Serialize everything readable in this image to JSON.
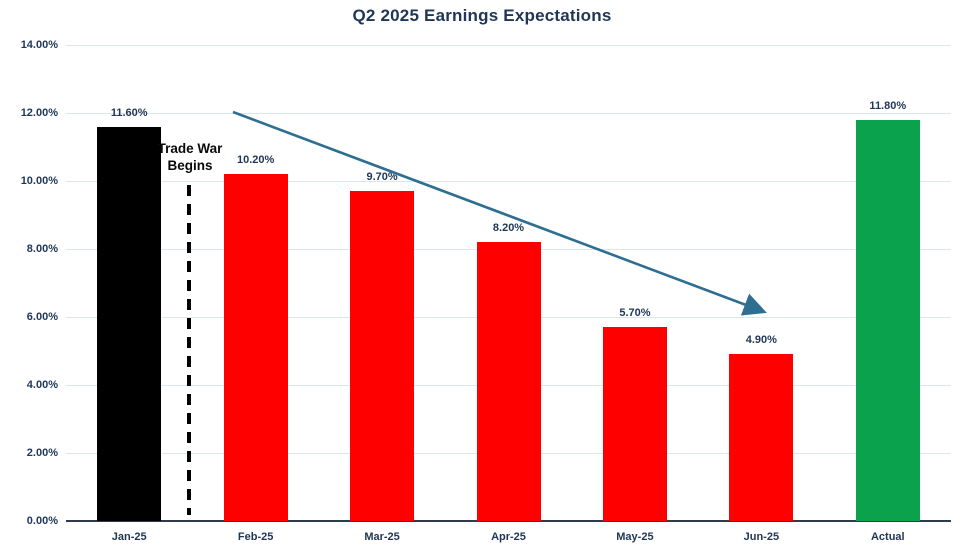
{
  "title": "Q2 2025 Earnings Expectations",
  "chart_data": {
    "type": "bar",
    "title": "Q2 2025 Earnings Expectations",
    "categories": [
      "Jan-25",
      "Feb-25",
      "Mar-25",
      "Apr-25",
      "May-25",
      "Jun-25",
      "Actual"
    ],
    "values": [
      11.6,
      10.2,
      9.7,
      8.2,
      5.7,
      4.9,
      11.8
    ],
    "value_labels": [
      "11.60%",
      "10.20%",
      "9.70%",
      "8.20%",
      "5.70%",
      "4.90%",
      "11.80%"
    ],
    "bar_color_keys": [
      "black",
      "red",
      "red",
      "red",
      "red",
      "red",
      "green"
    ],
    "xlabel": "",
    "ylabel": "",
    "ylim": [
      0,
      14
    ],
    "ytick_values": [
      14,
      12,
      10,
      8,
      6,
      4,
      2,
      0
    ],
    "ytick_labels": [
      "14.00%",
      "12.00%",
      "10.00%",
      "8.00%",
      "6.00%",
      "4.00%",
      "2.00%",
      "0.00%"
    ],
    "grid": true,
    "legend": false,
    "annotations": [
      {
        "id": "trade-war",
        "text_line1": "Trade War",
        "text_line2": "Begins",
        "style": "dashed-vertical-line",
        "position": "between Jan-25 and Feb-25"
      },
      {
        "id": "trend-arrow",
        "style": "downward-sloping-arrow",
        "spans": "Feb-25 to Jun-25"
      }
    ]
  },
  "colors": {
    "navy_text": "#1F3655",
    "red_bar": "#FF0000",
    "black_bar": "#000000",
    "green_bar": "#0BA24E",
    "trend_arrow": "#2E6E91",
    "gridline": "#DCE6F1",
    "axis_line": "#2E3B4E",
    "annotation_text": "#0A0A0A",
    "background": "#FFFFFF"
  }
}
